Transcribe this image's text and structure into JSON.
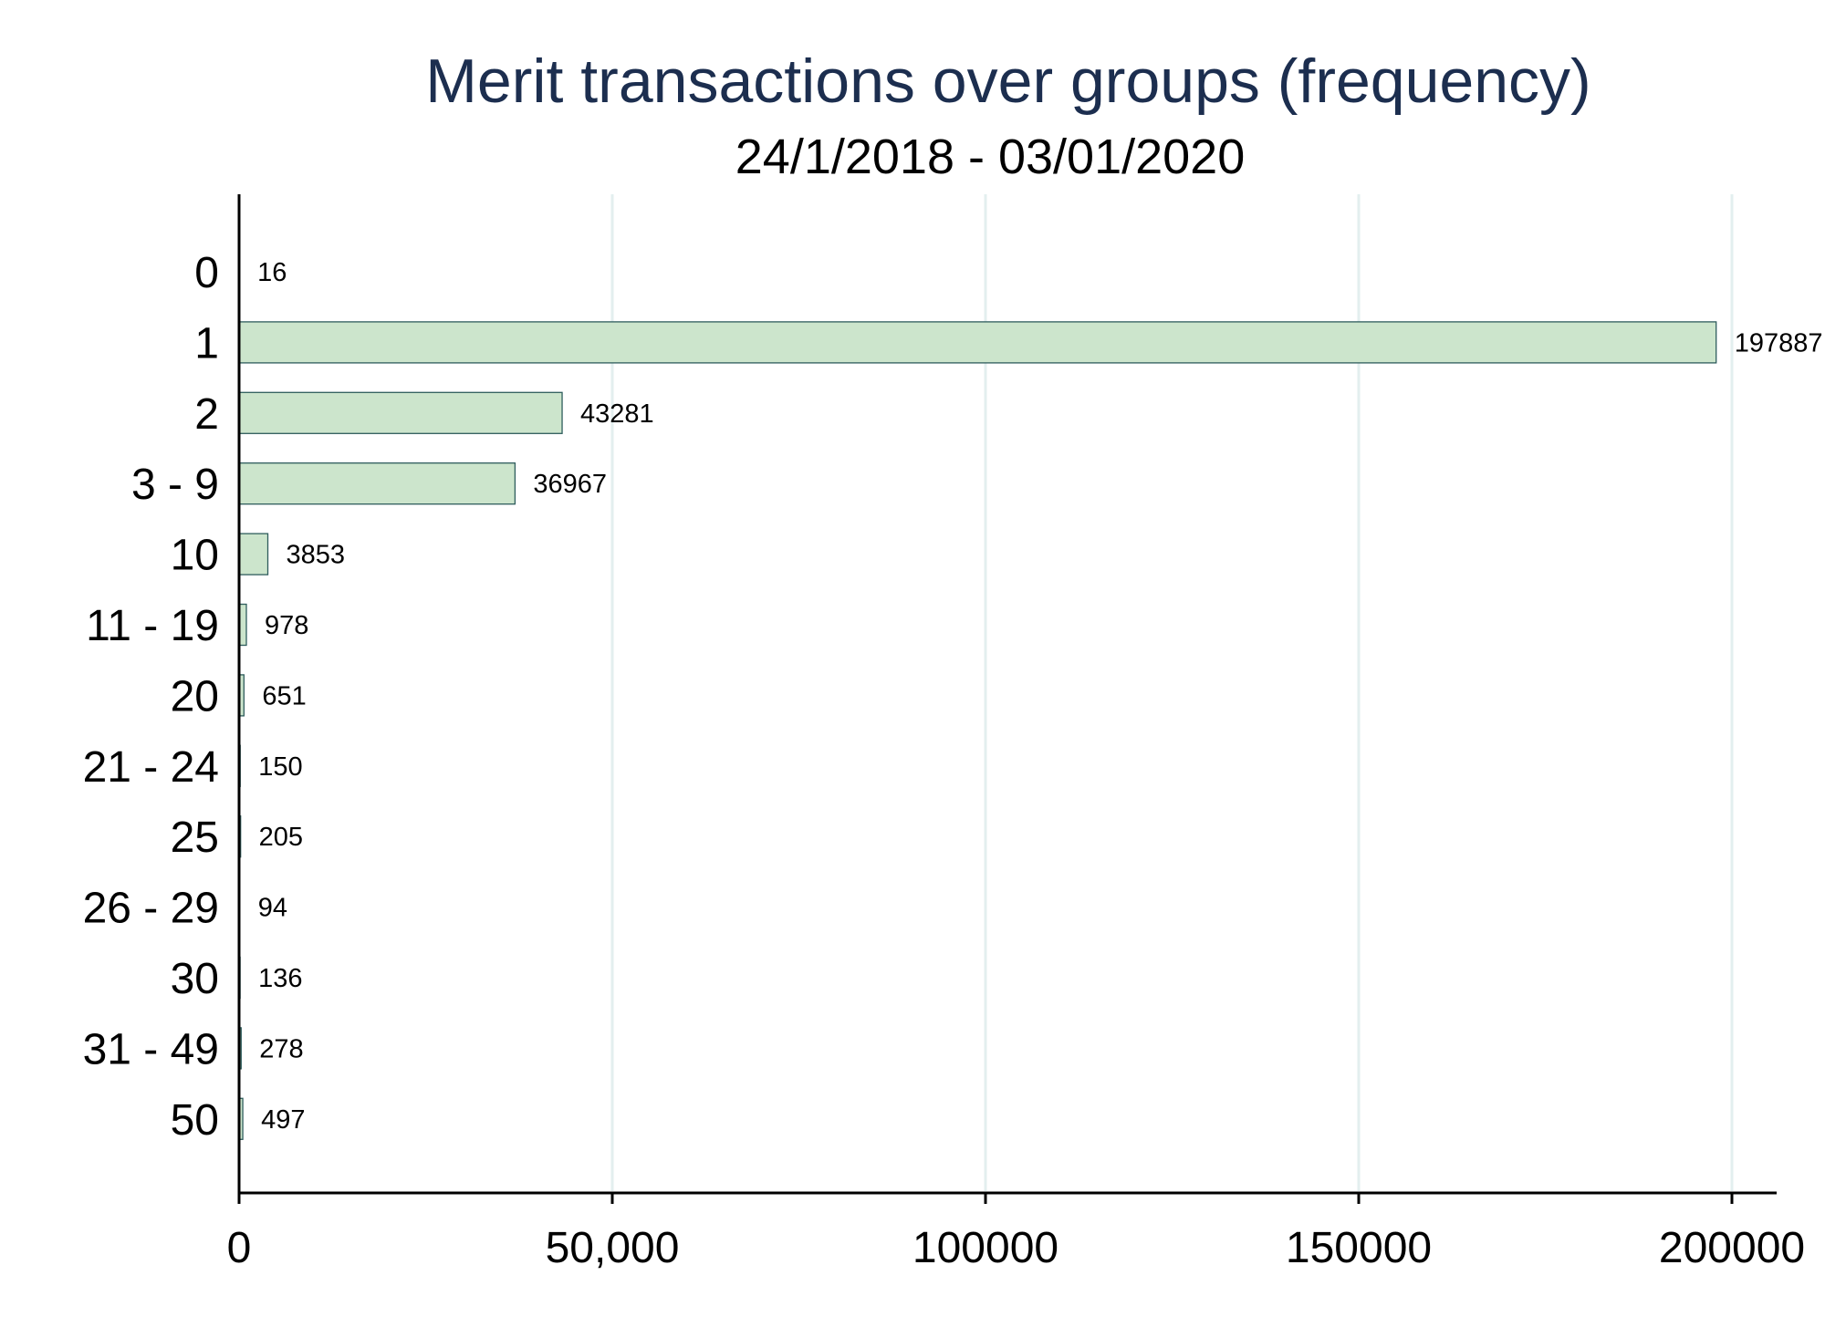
{
  "chart_data": {
    "type": "bar",
    "orientation": "horizontal",
    "title": "Merit transactions over groups (frequency)",
    "subtitle": "24/1/2018 - 03/01/2020",
    "categories": [
      "0",
      "1",
      "2",
      "3 - 9",
      "10",
      "11 - 19",
      "20",
      "21 - 24",
      "25",
      "26 - 29",
      "30",
      "31 - 49",
      "50"
    ],
    "values": [
      16,
      197887,
      43281,
      36967,
      3853,
      978,
      651,
      150,
      205,
      94,
      136,
      278,
      497
    ],
    "value_labels": [
      "16",
      "197887",
      "43281",
      "36967",
      "3853",
      "978",
      "651",
      "150",
      "205",
      "94",
      "136",
      "278",
      "497"
    ],
    "xlim": [
      0,
      206000
    ],
    "x_ticks": [
      0,
      50000,
      100000,
      150000,
      200000
    ],
    "x_tick_labels": [
      "0",
      "50,000",
      "100000",
      "150000",
      "200000"
    ],
    "grid": true,
    "colors": {
      "bar_fill": "#cce5cc",
      "bar_edge": "#2f5d5d",
      "grid": "#e3efef",
      "title": "#1c2e4f"
    }
  }
}
